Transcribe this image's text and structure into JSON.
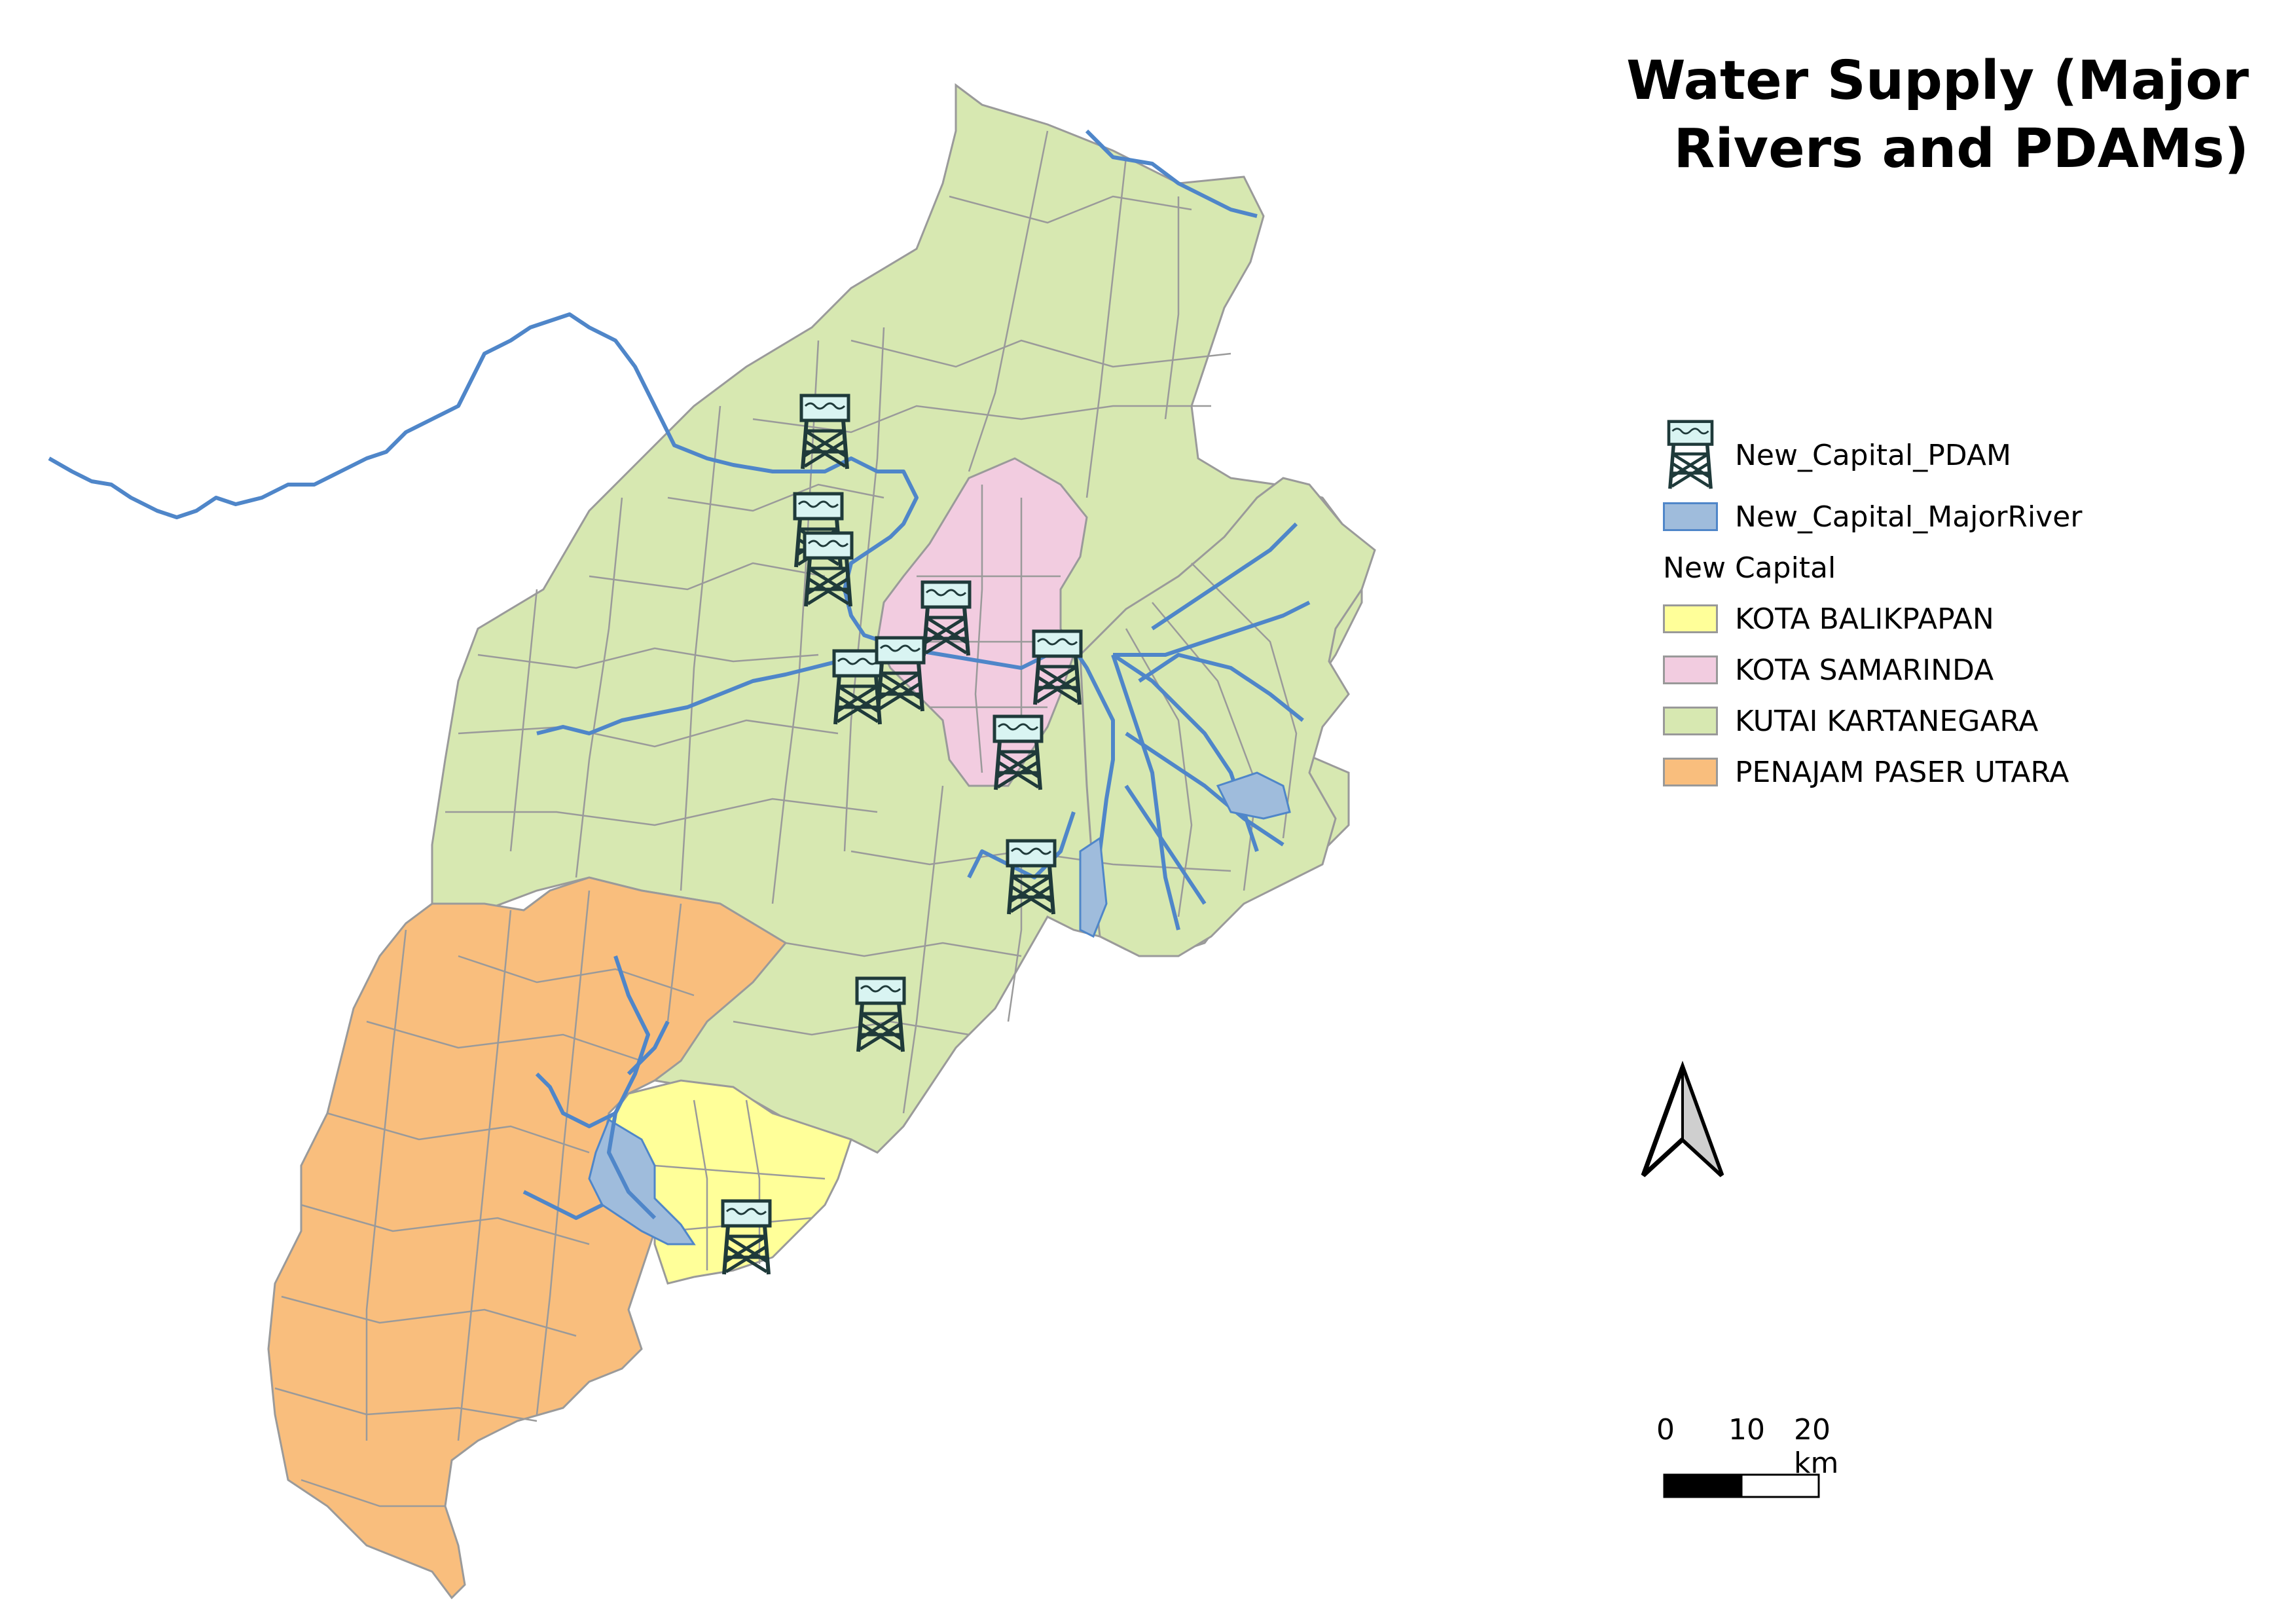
{
  "map": {
    "title": "Water Supply (Major Rivers and PDAMs)",
    "colors": {
      "balikpapan": "#ffff99",
      "samarinda": "#f2cce0",
      "kutai": "#d7e8b1",
      "penajam": "#f9be7d",
      "river_fill": "#9fbcdc",
      "river_line": "#4f86c9",
      "boundary": "#9a9a9a"
    },
    "legend": {
      "pdam_label": "New_Capital_PDAM",
      "river_label": "New_Capital_MajorRiver",
      "group_title": "New Capital",
      "categories": [
        {
          "label": "KOTA BALIKPAPAN",
          "color": "#ffff99"
        },
        {
          "label": "KOTA SAMARINDA",
          "color": "#f2cce0"
        },
        {
          "label": "KUTAI KARTANEGARA",
          "color": "#d7e8b1"
        },
        {
          "label": "PENAJAM PASER UTARA",
          "color": "#f9be7d"
        }
      ]
    },
    "scale": {
      "tick0": "0",
      "tick1": "10",
      "tick2": "20 km"
    },
    "icons": {
      "pdam": "water-tower-icon",
      "north": "north-arrow-icon"
    }
  }
}
